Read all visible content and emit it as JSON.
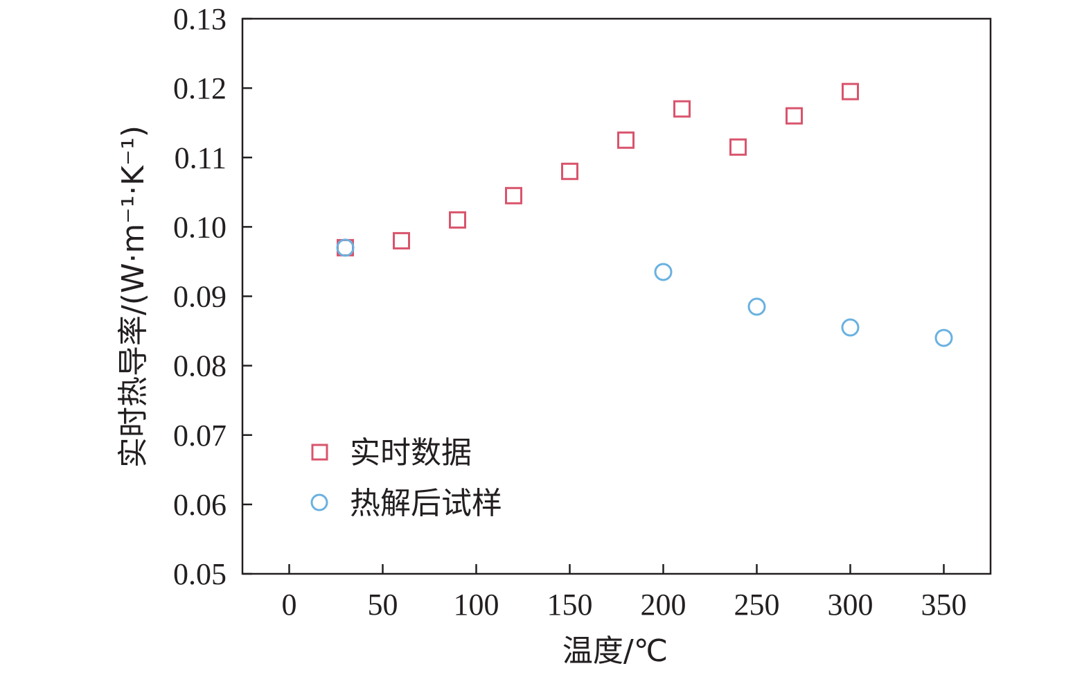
{
  "chart_data": {
    "type": "scatter",
    "xlabel": "温度/℃",
    "ylabel": "实时热导率/(W·m⁻¹·K⁻¹)",
    "xlim": [
      -25,
      375
    ],
    "ylim": [
      0.05,
      0.13
    ],
    "xticks": [
      0,
      50,
      100,
      150,
      200,
      250,
      300,
      350
    ],
    "yticks": [
      0.05,
      0.06,
      0.07,
      0.08,
      0.09,
      0.1,
      0.11,
      0.12,
      0.13
    ],
    "xtick_labels": [
      "0",
      "50",
      "100",
      "150",
      "200",
      "250",
      "300",
      "350"
    ],
    "ytick_labels": [
      "0.05",
      "0.06",
      "0.07",
      "0.08",
      "0.09",
      "0.10",
      "0.11",
      "0.12",
      "0.13"
    ],
    "grid": false,
    "legend_position": "lower-left",
    "series": [
      {
        "name": "实时数据",
        "marker": "square",
        "color": "#d9546c",
        "x": [
          30,
          60,
          90,
          120,
          150,
          180,
          210,
          240,
          270,
          300
        ],
        "y": [
          0.097,
          0.098,
          0.101,
          0.1045,
          0.108,
          0.1125,
          0.117,
          0.1115,
          0.116,
          0.1195
        ]
      },
      {
        "name": "热解后试样",
        "marker": "circle",
        "color": "#6ab1e0",
        "x": [
          30,
          200,
          250,
          300,
          350
        ],
        "y": [
          0.097,
          0.0935,
          0.0885,
          0.0855,
          0.084
        ]
      }
    ]
  }
}
